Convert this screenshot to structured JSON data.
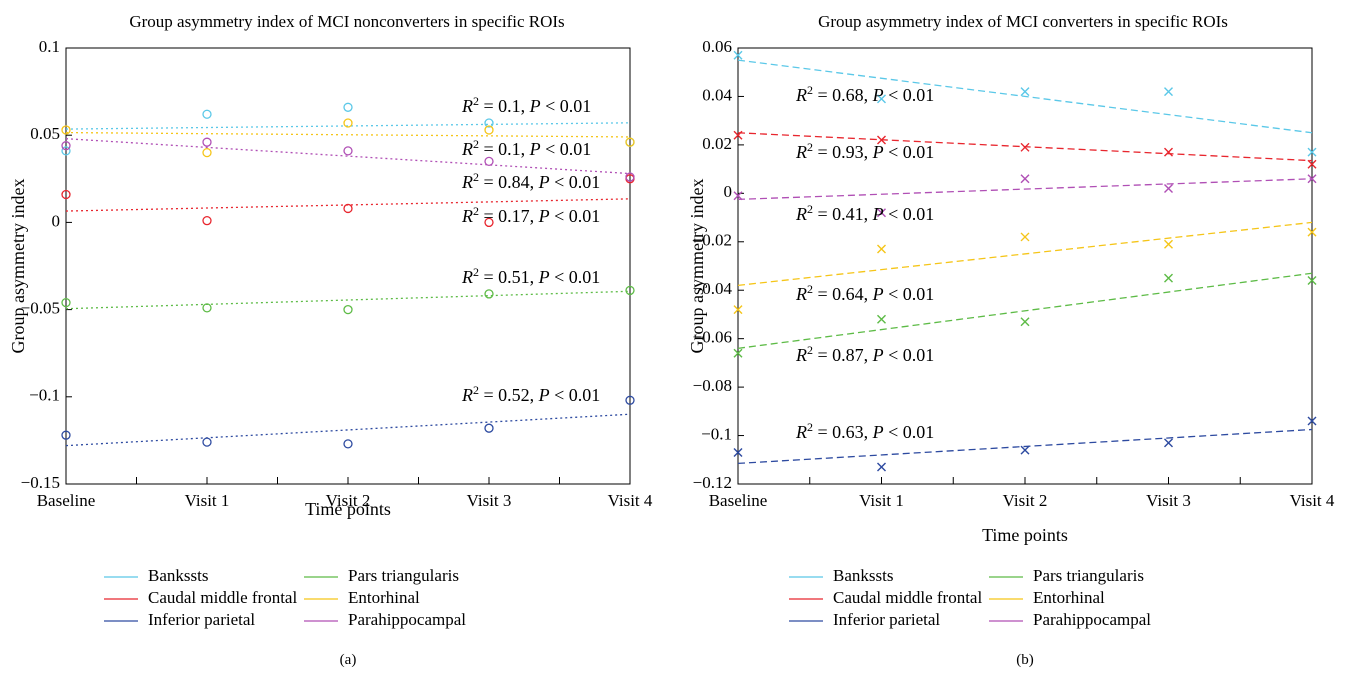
{
  "chart_data": [
    {
      "type": "scatter",
      "panel_label": "(a)",
      "title": "Group asymmetry index of MCI nonconverters in specific ROIs",
      "xlabel": "Time points",
      "ylabel": "Group asymmetry index",
      "categories": [
        "Baseline",
        "Visit 1",
        "Visit 2",
        "Visit 3",
        "Visit 4"
      ],
      "ylim": [
        -0.15,
        0.1
      ],
      "yticks": [
        -0.15,
        -0.1,
        -0.05,
        0,
        0.05,
        0.1
      ],
      "ytick_labels": [
        "−0.15",
        "−0.1",
        "−0.05",
        "0",
        "0.05",
        "0.1"
      ],
      "marker": "circle",
      "fit_line_style": "dotted",
      "series": [
        {
          "name": "Bankssts",
          "color": "#5bc8e8",
          "values": [
            0.041,
            0.062,
            0.066,
            0.057,
            0.046
          ],
          "fit": [
            0.0535,
            0.0545,
            0.0553,
            0.0562,
            0.0571
          ]
        },
        {
          "name": "Caudal middle frontal",
          "color": "#e8262e",
          "values": [
            0.016,
            0.001,
            0.008,
            0.0,
            0.025
          ],
          "fit": [
            0.0065,
            0.0083,
            0.01,
            0.0117,
            0.0135
          ]
        },
        {
          "name": "Inferior parietal",
          "color": "#2d4aa0",
          "values": [
            -0.122,
            -0.126,
            -0.127,
            -0.118,
            -0.102
          ],
          "fit": [
            -0.128,
            -0.1235,
            -0.119,
            -0.1145,
            -0.11
          ]
        },
        {
          "name": "Pars triangularis",
          "color": "#5dbb46",
          "values": [
            -0.046,
            -0.049,
            -0.05,
            -0.041,
            -0.039
          ],
          "fit": [
            -0.0495,
            -0.047,
            -0.0445,
            -0.042,
            -0.0395
          ]
        },
        {
          "name": "Entorhinal",
          "color": "#f5c518",
          "values": [
            0.053,
            0.04,
            0.057,
            0.053,
            0.046
          ],
          "fit": [
            0.0515,
            0.0509,
            0.0503,
            0.0496,
            0.049
          ]
        },
        {
          "name": "Parahippocampal",
          "color": "#b04fb5",
          "values": [
            0.044,
            0.046,
            0.041,
            0.035,
            0.026
          ],
          "fit": [
            0.048,
            0.043,
            0.038,
            0.033,
            0.028
          ]
        }
      ],
      "annotations": [
        {
          "r2": "0.1",
          "p": "0.01"
        },
        {
          "r2": "0.1",
          "p": "0.01"
        },
        {
          "r2": "0.84",
          "p": "0.01"
        },
        {
          "r2": "0.17",
          "p": "0.01"
        },
        {
          "r2": "0.51",
          "p": "0.01"
        },
        {
          "r2": "0.52",
          "p": "0.01"
        }
      ]
    },
    {
      "type": "scatter",
      "panel_label": "(b)",
      "title": "Group asymmetry index of MCI converters in specific ROIs",
      "xlabel": "Time points",
      "ylabel": "Group asymmetry index",
      "categories": [
        "Baseline",
        "Visit 1",
        "Visit 2",
        "Visit 3",
        "Visit 4"
      ],
      "ylim": [
        -0.12,
        0.06
      ],
      "yticks": [
        -0.12,
        -0.1,
        -0.08,
        -0.06,
        -0.04,
        -0.02,
        0,
        0.02,
        0.04,
        0.06
      ],
      "ytick_labels": [
        "−0.12",
        "−0.1",
        "−0.08",
        "−0.06",
        "−0.04",
        "−0.02",
        "0",
        "0.02",
        "0.04",
        "0.06"
      ],
      "marker": "cross",
      "fit_line_style": "dashed",
      "series": [
        {
          "name": "Bankssts",
          "color": "#5bc8e8",
          "values": [
            0.057,
            0.039,
            0.042,
            0.042,
            0.017
          ],
          "fit": [
            0.055,
            0.0475,
            0.04,
            0.0325,
            0.025
          ]
        },
        {
          "name": "Caudal middle frontal",
          "color": "#e8262e",
          "values": [
            0.024,
            0.022,
            0.019,
            0.017,
            0.012
          ],
          "fit": [
            0.025,
            0.022,
            0.0195,
            0.0165,
            0.0135
          ]
        },
        {
          "name": "Inferior parietal",
          "color": "#2d4aa0",
          "values": [
            -0.107,
            -0.113,
            -0.106,
            -0.103,
            -0.094
          ],
          "fit": [
            -0.1115,
            -0.108,
            -0.1045,
            -0.101,
            -0.0975
          ]
        },
        {
          "name": "Pars triangularis",
          "color": "#5dbb46",
          "values": [
            -0.066,
            -0.052,
            -0.053,
            -0.035,
            -0.036
          ],
          "fit": [
            -0.064,
            -0.0565,
            -0.049,
            -0.041,
            -0.033
          ]
        },
        {
          "name": "Entorhinal",
          "color": "#f5c518",
          "values": [
            -0.048,
            -0.023,
            -0.018,
            -0.021,
            -0.016
          ],
          "fit": [
            -0.038,
            -0.0315,
            -0.025,
            -0.0185,
            -0.012
          ]
        },
        {
          "name": "Parahippocampal",
          "color": "#b04fb5",
          "values": [
            -0.001,
            -0.008,
            0.006,
            0.002,
            0.006
          ],
          "fit": [
            -0.0025,
            -0.0003,
            0.0019,
            0.0041,
            0.006
          ]
        }
      ],
      "annotations": [
        {
          "r2": "0.68",
          "p": "0.01"
        },
        {
          "r2": "0.93",
          "p": "0.01"
        },
        {
          "r2": "0.41",
          "p": "0.01"
        },
        {
          "r2": "0.64",
          "p": "0.01"
        },
        {
          "r2": "0.87",
          "p": "0.01"
        },
        {
          "r2": "0.63",
          "p": "0.01"
        }
      ]
    }
  ],
  "legend": {
    "items": [
      "Bankssts",
      "Pars triangularis",
      "Caudal middle frontal",
      "Entorhinal",
      "Inferior parietal",
      "Parahippocampal"
    ],
    "colors": [
      "#5bc8e8",
      "#5dbb46",
      "#e8262e",
      "#f5c518",
      "#2d4aa0",
      "#b04fb5"
    ]
  }
}
